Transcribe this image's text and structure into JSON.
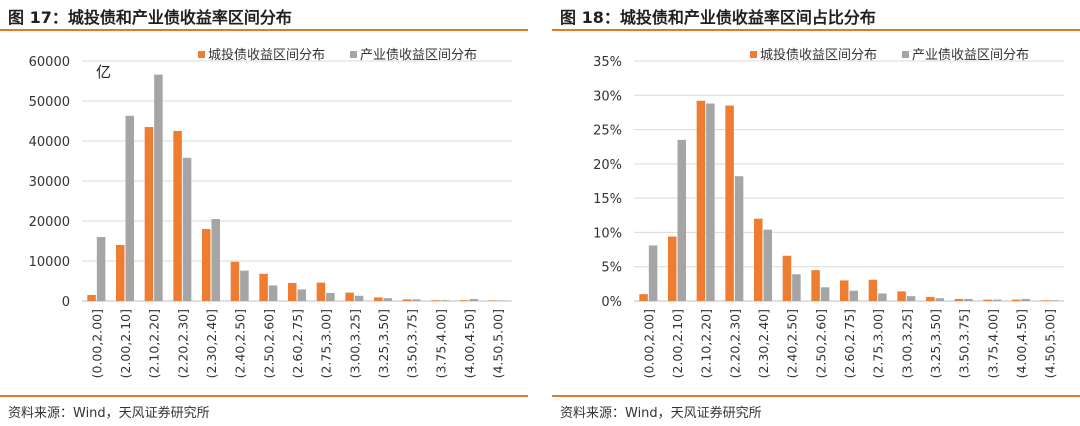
{
  "colors": {
    "orange": "#ef7d31",
    "gray": "#a5a5a5",
    "accent_rule": "#e07a2b"
  },
  "fig17": {
    "title": "图 17：城投债和产业债收益率区间分布",
    "source": "资料来源：Wind，天风证券研究所"
  },
  "fig18": {
    "title": "图 18：城投债和产业债收益率区间占比分布",
    "source": "资料来源：Wind，天风证券研究所"
  },
  "chart_data": [
    {
      "type": "bar",
      "title": "图 17：城投债和产业债收益率区间分布",
      "unit_label": "亿",
      "categories": [
        "(0.00,2.00]",
        "(2.00,2.10]",
        "(2.10,2.20]",
        "(2.20,2.30]",
        "(2.30,2.40]",
        "(2.40,2.50]",
        "(2.50,2.60]",
        "(2.60,2.75]",
        "(2.75,3.00]",
        "(3.00,3.25]",
        "(3.25,3.50]",
        "(3.50,3.75]",
        "(3.75,4.00]",
        "(4.00,4.50]",
        "(4.50,5.00]"
      ],
      "series": [
        {
          "name": "城投债收益区间分布",
          "color": "#ef7d31",
          "values": [
            1500,
            14000,
            43500,
            42500,
            18000,
            9800,
            6800,
            4500,
            4600,
            2100,
            900,
            400,
            200,
            200,
            100
          ]
        },
        {
          "name": "产业债收益区间分布",
          "color": "#a5a5a5",
          "values": [
            16000,
            46300,
            56600,
            35800,
            20500,
            7600,
            3900,
            2900,
            2000,
            1300,
            700,
            400,
            200,
            500,
            100
          ]
        }
      ],
      "ylim": [
        0,
        60000
      ],
      "yticks": [
        0,
        10000,
        20000,
        30000,
        40000,
        50000,
        60000
      ],
      "ytick_labels": [
        "0",
        "10000",
        "20000",
        "30000",
        "40000",
        "50000",
        "60000"
      ],
      "grid": true,
      "legend_position": "top-center"
    },
    {
      "type": "bar",
      "title": "图 18：城投债和产业债收益率区间占比分布",
      "categories": [
        "(0.00,2.00]",
        "(2.00,2.10]",
        "(2.10,2.20]",
        "(2.20,2.30]",
        "(2.30,2.40]",
        "(2.40,2.50]",
        "(2.50,2.60]",
        "(2.60,2.75]",
        "(2.75,3.00]",
        "(3.00,3.25]",
        "(3.25,3.50]",
        "(3.50,3.75]",
        "(3.75,4.00]",
        "(4.00,4.50]",
        "(4.50,5.00]"
      ],
      "series": [
        {
          "name": "城投债收益区间分布",
          "color": "#ef7d31",
          "values": [
            1.0,
            9.4,
            29.2,
            28.5,
            12.0,
            6.6,
            4.5,
            3.0,
            3.1,
            1.4,
            0.6,
            0.3,
            0.2,
            0.2,
            0.1
          ]
        },
        {
          "name": "产业债收益区间分布",
          "color": "#a5a5a5",
          "values": [
            8.1,
            23.5,
            28.8,
            18.2,
            10.4,
            3.9,
            2.0,
            1.5,
            1.1,
            0.7,
            0.4,
            0.3,
            0.2,
            0.3,
            0.1
          ]
        }
      ],
      "ylim": [
        0,
        35
      ],
      "yticks": [
        0,
        5,
        10,
        15,
        20,
        25,
        30,
        35
      ],
      "ytick_labels": [
        "0%",
        "5%",
        "10%",
        "15%",
        "20%",
        "25%",
        "30%",
        "35%"
      ],
      "grid": true,
      "legend_position": "top-center"
    }
  ]
}
